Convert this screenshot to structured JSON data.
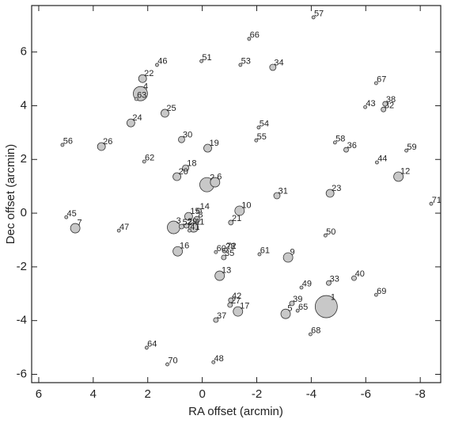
{
  "chart_data": {
    "type": "scatter",
    "x_label": "RA offset (arcmin)",
    "y_label": "Dec offset (arcmin)",
    "xlim": [
      6.26,
      -8.75
    ],
    "ylim": [
      -6.31,
      7.73
    ],
    "xticks": [
      6,
      4,
      2,
      0,
      -2,
      -4,
      -6,
      -8
    ],
    "yticks": [
      -6,
      -4,
      -2,
      0,
      2,
      4,
      6
    ],
    "color": "#c8c8c8",
    "labels": [
      "1",
      "2",
      "3",
      "4",
      "5",
      "6",
      "7",
      "8",
      "9",
      "10",
      "11",
      "12",
      "13",
      "14",
      "15",
      "16",
      "17",
      "18",
      "19",
      "20",
      "21",
      "22",
      "23",
      "24",
      "25",
      "26",
      "27",
      "28",
      "29",
      "30",
      "31",
      "32",
      "33",
      "34",
      "35",
      "36",
      "37",
      "38",
      "39",
      "40",
      "41",
      "42",
      "43",
      "44",
      "45",
      "46",
      "47",
      "48",
      "49",
      "50",
      "51",
      "52",
      "53",
      "54",
      "55",
      "56",
      "57",
      "58",
      "59",
      "60",
      "61",
      "62",
      "63",
      "64",
      "65",
      "66",
      "67",
      "68",
      "69",
      "70",
      "71",
      "72"
    ],
    "x": [
      -4.55,
      -0.17,
      1.05,
      2.27,
      -3.06,
      -0.47,
      4.66,
      0.2,
      -3.15,
      -1.37,
      0.32,
      -7.2,
      -0.64,
      0.12,
      0.5,
      0.9,
      -1.31,
      0.61,
      -0.2,
      0.93,
      -1.05,
      2.19,
      -4.69,
      2.62,
      1.37,
      3.7,
      -1.02,
      -0.82,
      0.58,
      0.76,
      -2.74,
      -6.65,
      -4.64,
      -2.59,
      -0.79,
      -5.28,
      -0.5,
      -6.71,
      -3.29,
      -5.57,
      0.47,
      -1.05,
      -5.98,
      -6.41,
      4.99,
      1.66,
      3.06,
      -0.41,
      -3.64,
      -4.52,
      0.03,
      0.76,
      -1.4,
      -2.07,
      -1.98,
      5.13,
      -4.08,
      -4.87,
      -7.49,
      -0.5,
      -2.1,
      2.13,
      2.42,
      2.04,
      -3.5,
      -1.72,
      -6.38,
      -3.97,
      -6.38,
      1.28,
      -8.4,
      -0.87
    ],
    "y": [
      -3.48,
      1.06,
      -0.53,
      4.45,
      -3.75,
      1.15,
      -0.56,
      -0.24,
      -1.65,
      0.09,
      -0.53,
      1.36,
      -2.33,
      0.09,
      -0.12,
      -1.42,
      -3.66,
      1.68,
      2.42,
      1.36,
      -0.35,
      5.01,
      0.74,
      3.36,
      3.72,
      2.48,
      -3.42,
      -1.39,
      -0.47,
      2.74,
      0.65,
      3.86,
      -2.6,
      5.43,
      -1.65,
      2.36,
      -3.98,
      4.07,
      -3.36,
      -2.42,
      -0.65,
      -3.24,
      3.95,
      1.89,
      -0.15,
      5.52,
      -0.65,
      -5.55,
      -2.77,
      -0.83,
      5.66,
      -0.5,
      5.52,
      3.19,
      2.71,
      2.54,
      7.29,
      2.63,
      2.33,
      -1.45,
      -1.53,
      1.92,
      4.25,
      -5.01,
      -3.63,
      6.49,
      4.84,
      -4.51,
      -3.04,
      -5.63,
      0.35,
      -1.36
    ],
    "sizes": [
      14,
      9,
      8,
      9,
      6,
      6,
      6,
      4,
      6,
      6,
      6,
      6,
      6,
      3,
      5,
      6,
      6,
      4,
      5,
      5,
      3,
      5,
      5,
      5,
      5,
      5,
      3,
      3,
      3,
      4,
      4,
      3,
      3,
      4,
      3,
      3,
      3,
      3,
      3,
      3,
      2,
      3,
      2,
      2,
      2,
      2,
      2,
      2,
      2,
      2,
      2,
      3,
      2,
      2,
      2,
      2,
      2,
      2,
      2,
      2,
      2,
      2,
      2,
      2,
      2,
      2,
      2,
      2,
      2,
      2,
      2,
      2
    ]
  }
}
